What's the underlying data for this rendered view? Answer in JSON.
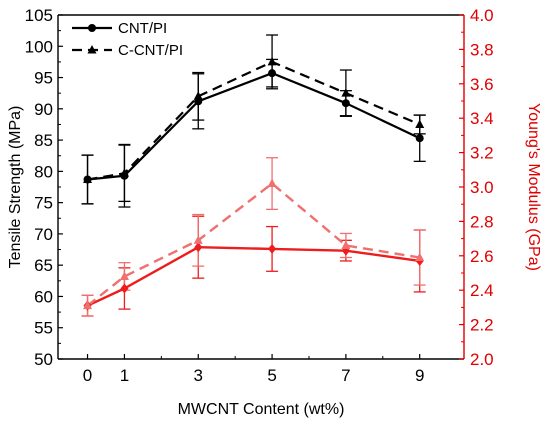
{
  "chart_data": {
    "type": "line",
    "xlabel": "MWCNT Content (wt%)",
    "ylabel_left": "Tensile Strength (MPa)",
    "ylabel_right": "Young's Modulus (GPa)",
    "x": [
      0,
      1,
      3,
      5,
      7,
      9
    ],
    "x_ticks": [
      "0",
      "1",
      "3",
      "5",
      "7",
      "9"
    ],
    "ylim_left": [
      50,
      105
    ],
    "ylim_right": [
      2.0,
      4.0
    ],
    "y_ticks_left": [
      "50",
      "55",
      "60",
      "65",
      "70",
      "75",
      "80",
      "85",
      "90",
      "95",
      "100",
      "105"
    ],
    "y_ticks_right": [
      "2.0",
      "2.2",
      "2.4",
      "2.6",
      "2.8",
      "3.0",
      "3.2",
      "3.4",
      "3.6",
      "3.8",
      "4.0"
    ],
    "legend_position": "top-left",
    "colors": {
      "strength": "#000000",
      "modulus_solid": "#ee1c1c",
      "modulus_dashed": "#f07070",
      "right_axis": "#e00000"
    },
    "series": [
      {
        "name": "CNT/PI",
        "axis": "left",
        "style": "solid",
        "marker": "circle",
        "values": [
          78.7,
          79.3,
          91.2,
          95.7,
          90.9,
          85.3
        ],
        "errors": [
          3.9,
          5.0,
          4.4,
          2.2,
          2.0,
          3.7
        ]
      },
      {
        "name": "C-CNT/PI",
        "axis": "left",
        "style": "dashed",
        "marker": "triangle",
        "values": [
          78.7,
          79.7,
          92.0,
          97.5,
          92.5,
          87.5
        ],
        "errors": [
          3.9,
          4.5,
          3.8,
          4.3,
          3.7,
          1.5
        ]
      },
      {
        "axis": "right",
        "style": "solid",
        "marker": "diamond",
        "values": [
          2.31,
          2.41,
          2.65,
          2.64,
          2.63,
          2.57
        ],
        "errors": [
          0.06,
          0.12,
          0.18,
          0.13,
          0.06,
          0.18
        ]
      },
      {
        "axis": "right",
        "style": "dashed",
        "marker": "triangle",
        "values": [
          2.31,
          2.48,
          2.69,
          3.02,
          2.66,
          2.59
        ],
        "errors": [
          0.06,
          0.08,
          0.15,
          0.15,
          0.07,
          0.16
        ]
      }
    ]
  }
}
